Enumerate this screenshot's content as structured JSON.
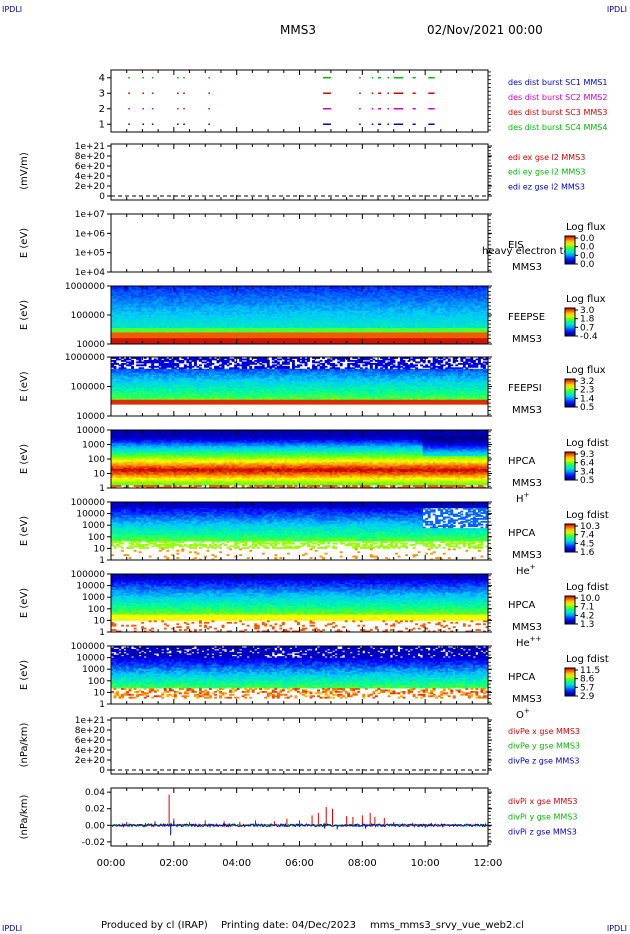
{
  "header": {
    "corner_tl": "IPDLI",
    "corner_tr": "IPDLI",
    "corner_bl": "IPDLI",
    "corner_br": "IPDLI",
    "mission": "MMS3",
    "datetime": "02/Nov/2021 00:00"
  },
  "footer": {
    "produced_by": "Produced by cl (IRAP)",
    "printing_date": "Printing date: 04/Dec/2023",
    "file": "mms_mms3_srvy_vue_web2.cl"
  },
  "colors": {
    "blue": "#0000cc",
    "magenta": "#cc00cc",
    "red": "#dd0000",
    "green": "#00bb00"
  },
  "x_axis": {
    "ticks": [
      "00:00",
      "02:00",
      "04:00",
      "06:00",
      "08:00",
      "10:00",
      "12:00"
    ]
  },
  "chart_data": [
    {
      "type": "scatter",
      "panel": "burst",
      "yticks": [
        "1",
        "2",
        "3",
        "4"
      ],
      "ylim": [
        0.5,
        4.5
      ],
      "series": [
        {
          "name": "des dist burst SC1 MMS1",
          "y": 1,
          "color": "#0000cc",
          "segments": [
            [
              0.55,
              0.6
            ],
            [
              1.0,
              1.05
            ],
            [
              1.3,
              1.35
            ],
            [
              2.1,
              2.15
            ],
            [
              2.3,
              2.35
            ],
            [
              3.1,
              3.15
            ],
            [
              6.75,
              7.0
            ],
            [
              7.9,
              7.95
            ],
            [
              8.3,
              8.35
            ],
            [
              8.5,
              8.6
            ],
            [
              8.8,
              8.85
            ],
            [
              9.0,
              9.3
            ],
            [
              9.6,
              9.7
            ],
            [
              10.1,
              10.3
            ]
          ]
        },
        {
          "name": "des dist burst SC2 MMS2",
          "y": 2,
          "color": "#cc00cc",
          "segments": [
            [
              0.55,
              0.6
            ],
            [
              1.0,
              1.05
            ],
            [
              1.3,
              1.35
            ],
            [
              2.1,
              2.15
            ],
            [
              2.3,
              2.35
            ],
            [
              3.1,
              3.15
            ],
            [
              6.75,
              7.0
            ],
            [
              7.9,
              7.95
            ],
            [
              8.3,
              8.35
            ],
            [
              8.5,
              8.6
            ],
            [
              8.8,
              8.85
            ],
            [
              9.0,
              9.3
            ],
            [
              9.6,
              9.7
            ],
            [
              10.1,
              10.3
            ]
          ]
        },
        {
          "name": "des dist burst SC3 MMS3",
          "y": 3,
          "color": "#dd0000",
          "segments": [
            [
              0.55,
              0.6
            ],
            [
              1.0,
              1.05
            ],
            [
              1.3,
              1.35
            ],
            [
              2.1,
              2.15
            ],
            [
              2.3,
              2.35
            ],
            [
              3.1,
              3.15
            ],
            [
              6.75,
              7.0
            ],
            [
              7.9,
              7.95
            ],
            [
              8.3,
              8.35
            ],
            [
              8.5,
              8.6
            ],
            [
              8.8,
              8.85
            ],
            [
              9.0,
              9.3
            ],
            [
              9.6,
              9.7
            ],
            [
              10.1,
              10.3
            ]
          ]
        },
        {
          "name": "des dist burst SC4 MMS4",
          "y": 4,
          "color": "#00bb00",
          "segments": [
            [
              0.55,
              0.6
            ],
            [
              1.0,
              1.05
            ],
            [
              1.3,
              1.35
            ],
            [
              2.1,
              2.15
            ],
            [
              2.3,
              2.35
            ],
            [
              3.1,
              3.15
            ],
            [
              6.75,
              7.0
            ],
            [
              7.9,
              7.95
            ],
            [
              8.3,
              8.35
            ],
            [
              8.5,
              8.6
            ],
            [
              8.8,
              8.85
            ],
            [
              9.0,
              9.3
            ],
            [
              9.6,
              9.7
            ],
            [
              10.1,
              10.3
            ]
          ]
        }
      ]
    },
    {
      "type": "line",
      "panel": "edi",
      "ylabel": "(mV/m)",
      "yticks": [
        "0",
        "2e+20",
        "4e+20",
        "6e+20",
        "8e+20",
        "1e+21"
      ],
      "ylim": [
        0,
        1e+21
      ],
      "zero_line": true,
      "series": [
        {
          "name": "edi ex gse l2 MMS3",
          "color": "#dd0000",
          "values": []
        },
        {
          "name": "edi ey gse l2 MMS3",
          "color": "#00bb00",
          "values": []
        },
        {
          "name": "edi ez gse l2 MMS3",
          "color": "#0000cc",
          "values": []
        }
      ]
    },
    {
      "type": "heatmap",
      "panel": "eis",
      "ylabel": "E (eV)",
      "yticks": [
        "1e+04",
        "1e+05",
        "1e+06",
        "1e+07"
      ],
      "instrument": "EIS",
      "instrument_overlay": "heavy electron to",
      "spacecraft": "MMS3",
      "colorbar_title": "Log flux",
      "colorbar_ticks": [
        "0.0",
        "0.0",
        "0.0",
        "0.0"
      ],
      "empty": true
    },
    {
      "type": "heatmap",
      "panel": "feepse",
      "ylabel": "E (eV)",
      "yticks": [
        "10000",
        "100000",
        "1000000"
      ],
      "instrument": "FEEPSE",
      "spacecraft": "MMS3",
      "colorbar_title": "Log flux",
      "colorbar_ticks": [
        "3.0",
        "1.8",
        "0.7",
        "-0.4"
      ]
    },
    {
      "type": "heatmap",
      "panel": "feepsi",
      "ylabel": "E (eV)",
      "yticks": [
        "10000",
        "100000",
        "1000000"
      ],
      "instrument": "FEEPSI",
      "spacecraft": "MMS3",
      "colorbar_title": "Log flux",
      "colorbar_ticks": [
        "3.2",
        "2.3",
        "1.4",
        "0.5"
      ]
    },
    {
      "type": "heatmap",
      "panel": "hpca_h",
      "ylabel": "E (eV)",
      "yticks": [
        "1",
        "10",
        "100",
        "1000",
        "10000"
      ],
      "instrument": "HPCA",
      "spacecraft": "MMS3",
      "species": "H",
      "species_sup": "+",
      "colorbar_title": "Log fdist",
      "colorbar_ticks": [
        "9.3",
        "6.4",
        "3.4",
        "0.5"
      ]
    },
    {
      "type": "heatmap",
      "panel": "hpca_he",
      "ylabel": "E (eV)",
      "yticks": [
        "1",
        "10",
        "100",
        "1000",
        "10000",
        "100000"
      ],
      "instrument": "HPCA",
      "spacecraft": "MMS3",
      "species": "He",
      "species_sup": "+",
      "colorbar_title": "Log fdist",
      "colorbar_ticks": [
        "10.3",
        "7.4",
        "4.5",
        "1.6"
      ]
    },
    {
      "type": "heatmap",
      "panel": "hpca_hepp",
      "ylabel": "E (eV)",
      "yticks": [
        "1",
        "10",
        "100",
        "1000",
        "10000",
        "100000"
      ],
      "instrument": "HPCA",
      "spacecraft": "MMS3",
      "species": "He",
      "species_sup": "++",
      "colorbar_title": "Log fdist",
      "colorbar_ticks": [
        "10.0",
        "7.1",
        "4.2",
        "1.3"
      ]
    },
    {
      "type": "heatmap",
      "panel": "hpca_o",
      "ylabel": "E (eV)",
      "yticks": [
        "1",
        "10",
        "100",
        "1000",
        "10000",
        "100000"
      ],
      "instrument": "HPCA",
      "spacecraft": "MMS3",
      "species": "O",
      "species_sup": "+",
      "colorbar_title": "Log fdist",
      "colorbar_ticks": [
        "11.5",
        "8.6",
        "5.7",
        "2.9"
      ]
    },
    {
      "type": "line",
      "panel": "divpe",
      "ylabel": "(nPa/km)",
      "yticks": [
        "0",
        "2e+20",
        "4e+20",
        "6e+20",
        "8e+20",
        "1e+21"
      ],
      "ylim": [
        0,
        1e+21
      ],
      "zero_line": true,
      "series": [
        {
          "name": "divPe x gse MMS3",
          "color": "#dd0000",
          "values": []
        },
        {
          "name": "divPe y gse MMS3",
          "color": "#00bb00",
          "values": []
        },
        {
          "name": "divPe z gse MMS3",
          "color": "#0000cc",
          "values": []
        }
      ]
    },
    {
      "type": "line",
      "panel": "divpi",
      "ylabel": "(nPa/km)",
      "yticks": [
        "-0.02",
        "0.00",
        "0.02",
        "0.04"
      ],
      "ylim": [
        -0.025,
        0.045
      ],
      "series": [
        {
          "name": "divPi x gse MMS3",
          "color": "#dd0000",
          "spikes": [
            [
              0.5,
              0.004
            ],
            [
              1.1,
              0.003
            ],
            [
              1.4,
              0.005
            ],
            [
              1.85,
              0.037
            ],
            [
              2.0,
              0.008
            ],
            [
              2.5,
              0.004
            ],
            [
              3.0,
              0.006
            ],
            [
              3.6,
              0.005
            ],
            [
              4.1,
              0.004
            ],
            [
              4.6,
              0.006
            ],
            [
              5.2,
              0.005
            ],
            [
              5.6,
              0.008
            ],
            [
              6.0,
              0.006
            ],
            [
              6.4,
              0.012
            ],
            [
              6.6,
              0.015
            ],
            [
              6.85,
              0.022
            ],
            [
              7.05,
              0.02
            ],
            [
              7.5,
              0.011
            ],
            [
              7.7,
              0.01
            ],
            [
              8.0,
              0.012
            ],
            [
              8.25,
              0.015
            ],
            [
              8.4,
              0.01
            ],
            [
              8.7,
              0.009
            ],
            [
              9.0,
              0.004
            ],
            [
              9.6,
              0.003
            ],
            [
              10.2,
              0.003
            ]
          ]
        },
        {
          "name": "divPi y gse MMS3",
          "color": "#00bb00",
          "spikes": [
            [
              1.9,
              0.003
            ],
            [
              6.8,
              0.003
            ],
            [
              8.3,
              0.003
            ]
          ]
        },
        {
          "name": "divPi z gse MMS3",
          "color": "#0000cc",
          "spikes": [
            [
              1.9,
              -0.012
            ],
            [
              2.0,
              0.005
            ],
            [
              6.8,
              -0.004
            ],
            [
              7.2,
              -0.005
            ],
            [
              8.1,
              -0.004
            ],
            [
              10.0,
              -0.003
            ]
          ]
        }
      ]
    }
  ]
}
